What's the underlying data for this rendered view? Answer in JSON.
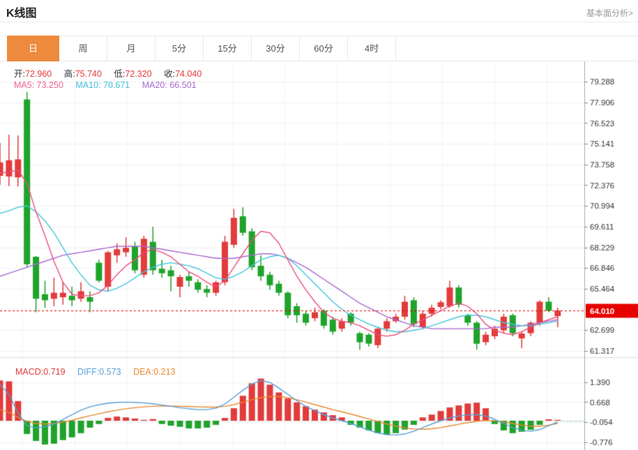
{
  "header": {
    "title": "K线图",
    "link": "基本面分析>"
  },
  "tabs": [
    {
      "label": "日",
      "active": true
    },
    {
      "label": "周",
      "active": false
    },
    {
      "label": "月",
      "active": false
    },
    {
      "label": "5分",
      "active": false
    },
    {
      "label": "15分",
      "active": false
    },
    {
      "label": "30分",
      "active": false
    },
    {
      "label": "60分",
      "active": false
    },
    {
      "label": "4时",
      "active": false
    }
  ],
  "readout": {
    "open_label": "开:",
    "open": "72.960",
    "high_label": "高:",
    "high": "75.740",
    "low_label": "低:",
    "low": "72.320",
    "close_label": "收:",
    "close": "74.040",
    "ma5_label": "MA5:",
    "ma5": "73.250",
    "ma10_label": "MA10:",
    "ma10": "70.671",
    "ma20_label": "MA20:",
    "ma20": "66.501"
  },
  "macd_readout": {
    "macd_label": "MACD:",
    "macd": "0.719",
    "diff_label": "DIFF:",
    "diff": "0.573",
    "dea_label": "DEA:",
    "dea": "0.213"
  },
  "colors": {
    "accent_orange": "#ED8A3D",
    "up_red": "#E23B3B",
    "down_green": "#1FA32B",
    "ma5_pink": "#ED4E7E",
    "ma10_cyan": "#45C5DD",
    "ma20_purple": "#A869CF",
    "diff_blue": "#5B9FD8",
    "dea_orange": "#E8892F",
    "price_tag_red": "#E60000",
    "grid": "#F1F1F1",
    "grid_vertical": "#F5F5F5",
    "axis": "#AAAAAA",
    "label": "#333333",
    "separator": "#DBDBDB",
    "dash_cyan": "#8FD8EA"
  },
  "chart_data": {
    "type": "candlestick_with_macd",
    "title": "K线图 (daily K-line with MACD)",
    "price_axis": {
      "ticks": [
        79.288,
        77.906,
        76.523,
        75.141,
        73.758,
        72.376,
        70.994,
        69.611,
        68.229,
        66.846,
        65.464,
        62.699,
        61.317
      ],
      "current_price": 64.01
    },
    "macd_axis": {
      "ticks": [
        1.39,
        0.668,
        -0.054,
        -0.776
      ]
    },
    "series": {
      "candles_ohlc": [
        [
          73.0,
          75.2,
          72.4,
          73.9
        ],
        [
          72.96,
          75.74,
          72.32,
          74.04
        ],
        [
          72.9,
          75.7,
          72.3,
          74.1
        ],
        [
          78.1,
          78.6,
          66.9,
          67.1
        ],
        [
          67.6,
          67.65,
          63.9,
          64.8
        ],
        [
          65.1,
          66.0,
          64.2,
          64.7
        ],
        [
          64.8,
          66.2,
          64.3,
          65.2
        ],
        [
          64.9,
          65.9,
          64.4,
          65.2
        ],
        [
          65.0,
          65.6,
          64.3,
          64.7
        ],
        [
          64.8,
          65.9,
          64.6,
          65.3
        ],
        [
          64.9,
          65.3,
          63.9,
          64.6
        ],
        [
          67.2,
          67.4,
          65.9,
          66.0
        ],
        [
          65.6,
          68.0,
          65.3,
          67.9
        ],
        [
          67.7,
          68.5,
          67.2,
          68.1
        ],
        [
          67.9,
          68.9,
          67.6,
          68.2
        ],
        [
          68.3,
          68.6,
          66.5,
          66.7
        ],
        [
          66.4,
          69.0,
          66.2,
          68.8
        ],
        [
          68.6,
          69.6,
          66.4,
          66.7
        ],
        [
          66.8,
          67.4,
          66.2,
          66.5
        ],
        [
          66.7,
          67.0,
          65.3,
          66.3
        ],
        [
          65.6,
          66.4,
          64.9,
          66.25
        ],
        [
          66.3,
          66.6,
          65.6,
          66.0
        ],
        [
          65.9,
          66.1,
          65.2,
          65.4
        ],
        [
          65.45,
          65.7,
          64.9,
          65.2
        ],
        [
          65.2,
          66.0,
          65.0,
          65.9
        ],
        [
          65.9,
          69.0,
          65.7,
          68.6
        ],
        [
          68.4,
          70.8,
          68.2,
          70.2
        ],
        [
          70.3,
          70.9,
          69.0,
          69.2
        ],
        [
          69.3,
          69.5,
          66.7,
          66.9
        ],
        [
          67.0,
          67.7,
          66.0,
          66.3
        ],
        [
          66.4,
          66.6,
          65.4,
          65.7
        ],
        [
          65.8,
          66.0,
          65.0,
          65.2
        ],
        [
          65.2,
          65.3,
          63.5,
          63.7
        ],
        [
          64.3,
          64.5,
          63.2,
          63.7
        ],
        [
          63.8,
          64.0,
          63.0,
          63.2
        ],
        [
          63.5,
          64.2,
          63.3,
          63.9
        ],
        [
          64.0,
          64.1,
          62.8,
          63.0
        ],
        [
          63.4,
          63.6,
          62.4,
          62.6
        ],
        [
          62.8,
          63.5,
          62.6,
          63.3
        ],
        [
          63.8,
          63.9,
          63.0,
          63.2
        ],
        [
          62.5,
          62.6,
          61.4,
          61.9
        ],
        [
          62.4,
          62.5,
          61.6,
          61.8
        ],
        [
          61.7,
          62.9,
          61.5,
          62.8
        ],
        [
          62.8,
          63.5,
          62.6,
          63.3
        ],
        [
          63.3,
          63.8,
          63.2,
          63.6
        ],
        [
          63.6,
          65.0,
          63.4,
          64.6
        ],
        [
          64.7,
          64.9,
          62.9,
          63.1
        ],
        [
          62.9,
          64.0,
          62.8,
          63.8
        ],
        [
          63.8,
          64.4,
          63.6,
          64.2
        ],
        [
          64.25,
          64.7,
          64.1,
          64.57
        ],
        [
          64.3,
          66.0,
          64.2,
          65.55
        ],
        [
          65.55,
          65.7,
          64.2,
          64.4
        ],
        [
          63.7,
          63.8,
          63.0,
          63.2
        ],
        [
          63.2,
          63.3,
          61.4,
          61.8
        ],
        [
          61.9,
          62.6,
          61.7,
          62.4
        ],
        [
          62.3,
          63.0,
          62.1,
          62.8
        ],
        [
          62.7,
          63.8,
          62.5,
          63.6
        ],
        [
          63.7,
          63.8,
          62.3,
          62.5
        ],
        [
          62.15,
          62.6,
          61.5,
          62.48
        ],
        [
          62.5,
          63.3,
          62.3,
          63.2
        ],
        [
          63.2,
          64.7,
          63.0,
          64.6
        ],
        [
          64.6,
          64.9,
          63.9,
          64.0
        ],
        [
          63.64,
          64.2,
          62.9,
          64.01
        ]
      ],
      "ma5": [
        73.2,
        73.25,
        73.4,
        72.5,
        70.6,
        69.0,
        67.3,
        65.9,
        65.1,
        65.0,
        65.0,
        65.2,
        65.7,
        66.4,
        67.0,
        67.4,
        67.9,
        68.1,
        67.9,
        67.6,
        67.1,
        66.6,
        66.3,
        65.9,
        65.6,
        66.0,
        66.9,
        67.8,
        68.7,
        69.3,
        69.2,
        68.5,
        67.4,
        66.3,
        65.4,
        64.6,
        63.9,
        63.5,
        63.3,
        63.2,
        63.0,
        62.7,
        62.4,
        62.3,
        62.4,
        62.7,
        63.1,
        63.4,
        63.7,
        64.0,
        64.3,
        64.5,
        64.3,
        63.8,
        63.1,
        62.7,
        62.5,
        62.4,
        62.6,
        62.9,
        63.2,
        63.4,
        63.6
      ],
      "ma10": [
        70.5,
        70.67,
        70.9,
        71.0,
        70.6,
        70.0,
        69.2,
        68.2,
        67.2,
        66.4,
        65.7,
        65.4,
        65.3,
        65.5,
        65.8,
        66.2,
        66.6,
        66.9,
        67.1,
        67.2,
        67.1,
        67.0,
        66.8,
        66.5,
        66.2,
        66.1,
        66.3,
        66.6,
        67.0,
        67.4,
        67.6,
        67.7,
        67.5,
        67.0,
        66.4,
        65.8,
        65.2,
        64.6,
        64.1,
        63.7,
        63.4,
        63.1,
        62.9,
        62.7,
        62.6,
        62.6,
        62.7,
        62.8,
        63.0,
        63.2,
        63.4,
        63.6,
        63.7,
        63.7,
        63.6,
        63.4,
        63.2,
        63.1,
        63.0,
        63.0,
        63.1,
        63.2,
        63.3
      ],
      "ma20": [
        66.3,
        66.5,
        66.7,
        66.9,
        67.1,
        67.3,
        67.5,
        67.7,
        67.8,
        67.9,
        68.0,
        68.1,
        68.2,
        68.3,
        68.3,
        68.3,
        68.3,
        68.2,
        68.1,
        68.0,
        67.9,
        67.8,
        67.7,
        67.6,
        67.5,
        67.5,
        67.5,
        67.6,
        67.7,
        67.8,
        67.8,
        67.7,
        67.5,
        67.2,
        66.9,
        66.5,
        66.1,
        65.7,
        65.3,
        64.9,
        64.5,
        64.2,
        63.9,
        63.6,
        63.4,
        63.2,
        63.0,
        62.9,
        62.8,
        62.8,
        62.8,
        62.8,
        62.8,
        62.8,
        62.8,
        62.9,
        62.9,
        62.9,
        63.0,
        63.1,
        63.2,
        63.3,
        63.4
      ],
      "macd_hist": [
        1.45,
        1.42,
        0.71,
        -0.48,
        -0.73,
        -0.86,
        -0.83,
        -0.7,
        -0.6,
        -0.45,
        -0.25,
        -0.12,
        0.1,
        0.15,
        0.12,
        0.08,
        0.03,
        0.06,
        -0.12,
        -0.18,
        -0.22,
        -0.28,
        -0.28,
        -0.25,
        -0.15,
        0.1,
        0.45,
        0.9,
        1.35,
        1.52,
        1.3,
        1.02,
        0.8,
        0.66,
        0.52,
        0.4,
        0.3,
        0.2,
        0.12,
        -0.15,
        -0.25,
        -0.35,
        -0.45,
        -0.51,
        -0.45,
        -0.32,
        -0.15,
        0.12,
        0.22,
        0.35,
        0.48,
        0.55,
        0.62,
        0.65,
        0.45,
        -0.12,
        -0.35,
        -0.45,
        -0.4,
        -0.33,
        -0.15,
        0.05,
        0.03
      ],
      "diff": [
        1.3,
        0.95,
        0.28,
        -0.18,
        -0.26,
        -0.22,
        -0.12,
        0.05,
        0.22,
        0.38,
        0.5,
        0.58,
        0.63,
        0.66,
        0.67,
        0.66,
        0.64,
        0.61,
        0.57,
        0.52,
        0.47,
        0.43,
        0.4,
        0.4,
        0.45,
        0.6,
        0.85,
        1.1,
        1.32,
        1.45,
        1.38,
        1.18,
        0.95,
        0.72,
        0.52,
        0.36,
        0.22,
        0.1,
        0.0,
        -0.1,
        -0.22,
        -0.34,
        -0.44,
        -0.5,
        -0.52,
        -0.48,
        -0.38,
        -0.25,
        -0.12,
        0.0,
        0.1,
        0.17,
        0.21,
        0.22,
        0.17,
        0.05,
        -0.1,
        -0.25,
        -0.35,
        -0.38,
        -0.32,
        -0.18,
        -0.05
      ],
      "dea": [
        0.4,
        0.3,
        0.12,
        -0.02,
        -0.1,
        -0.12,
        -0.1,
        -0.05,
        0.02,
        0.1,
        0.18,
        0.25,
        0.32,
        0.38,
        0.43,
        0.47,
        0.5,
        0.52,
        0.53,
        0.53,
        0.52,
        0.51,
        0.5,
        0.49,
        0.49,
        0.52,
        0.58,
        0.67,
        0.76,
        0.83,
        0.87,
        0.87,
        0.83,
        0.76,
        0.67,
        0.58,
        0.49,
        0.4,
        0.32,
        0.24,
        0.15,
        0.06,
        -0.03,
        -0.12,
        -0.2,
        -0.26,
        -0.3,
        -0.31,
        -0.29,
        -0.25,
        -0.19,
        -0.13,
        -0.07,
        -0.02,
        0.01,
        0.0,
        -0.04,
        -0.1,
        -0.16,
        -0.2,
        -0.2,
        -0.16,
        -0.1
      ]
    }
  }
}
